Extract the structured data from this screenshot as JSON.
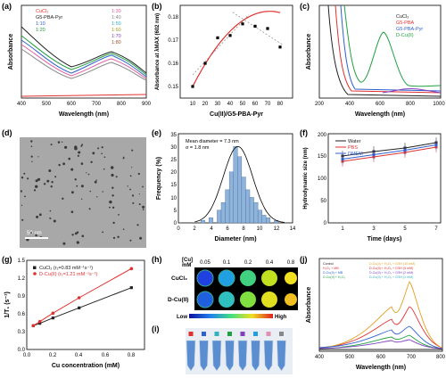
{
  "panels": {
    "a": {
      "label": "(a)",
      "xlabel": "Wavelength (nm)",
      "ylabel": "Absorbance",
      "xticks": [
        "400",
        "500",
        "600",
        "700",
        "800",
        "900"
      ],
      "legend_left": [
        "CuCl₂",
        "G5-PBA-Pyr",
        "1:10",
        "1:20"
      ],
      "legend_right": [
        "1:30",
        "1:40",
        "1:50",
        "1:60",
        "1:70",
        "1:80"
      ]
    },
    "b": {
      "label": "(b)",
      "xlabel": "Cu(II)/G5-PBA-Pyr",
      "ylabel": "Absorbance at λMAX (602 nm)",
      "xticks": [
        "10",
        "20",
        "30",
        "40",
        "50",
        "60",
        "70",
        "80"
      ],
      "yticks": [
        "0.15",
        "0.16",
        "0.17",
        "0.18"
      ]
    },
    "c": {
      "label": "(c)",
      "xlabel": "Wavelength (nm)",
      "ylabel": "Absorbance",
      "xticks": [
        "200",
        "400",
        "600",
        "800",
        "1000"
      ],
      "legend": [
        "CuCl₂",
        "G5-PBA",
        "G5-PBA-Pyr",
        "D-Cu(II)"
      ]
    },
    "d": {
      "label": "(d)",
      "scale": "50 nm"
    },
    "e": {
      "label": "(e)",
      "xlabel": "Diameter (nm)",
      "ylabel": "Frequency (%)",
      "annot1": "Mean diameter = 7.3 nm",
      "annot2": "σ = 1.8 nm",
      "xticks": [
        "0",
        "2",
        "4",
        "6",
        "8",
        "10",
        "12",
        "14"
      ],
      "yticks": [
        "0",
        "5",
        "10",
        "15",
        "20",
        "25",
        "30",
        "35"
      ]
    },
    "f": {
      "label": "(f)",
      "xlabel": "Time (days)",
      "ylabel": "Hydrodynamic size (nm)",
      "xticks": [
        "1",
        "3",
        "5",
        "7"
      ],
      "yticks": [
        "0",
        "50",
        "100",
        "150",
        "200"
      ],
      "legend": [
        "Water",
        "PBS",
        "DMEM"
      ]
    },
    "g": {
      "label": "(g)",
      "xlabel": "Cu concentration (mM)",
      "ylabel": "1/T₁ (s⁻¹)",
      "xticks": [
        "0.0",
        "0.2",
        "0.4",
        "0.6",
        "0.8"
      ],
      "yticks": [
        "0.0",
        "0.3",
        "0.6",
        "0.9",
        "1.2",
        "1.5"
      ],
      "legend": [
        "CuCl₂     (r₁=0.83 mM⁻¹s⁻¹)",
        "D-Cu(II) (r₁=1.21 mM⁻¹s⁻¹)"
      ]
    },
    "h": {
      "label": "(h)",
      "header": "[Cu]",
      "unit": "mM",
      "concs": [
        "0.05",
        "0.1",
        "0.2",
        "0.4",
        "0.8"
      ],
      "row1": "CuCl₂",
      "row2": "D-Cu(II)",
      "low": "Low",
      "high": "High"
    },
    "i": {
      "label": "(i)"
    },
    "j": {
      "label": "(j)",
      "xlabel": "Wavelength (nm)",
      "ylabel": "Absorbance",
      "xticks": [
        "400",
        "500",
        "600",
        "700",
        "800"
      ],
      "legend_left": [
        "Control",
        "H₂O₂ + MB",
        "D-Cu(II) + MB",
        "D-Cu(II) + H₂O₂"
      ],
      "legend_right": [
        "D-Cu(II) + H₂O₂ + GSH (10 mM)",
        "D-Cu(II) + H₂O₂ + GSH (5 mM)",
        "D-Cu(II) + H₂O₂ + GSH (2 mM)",
        "D-Cu(II) + H₂O₂ + GSH (1 mM)"
      ]
    }
  },
  "colors": {
    "black": "#222222",
    "red": "#e03030",
    "blue": "#3060d0",
    "green": "#20a040",
    "grey": "#888888",
    "pink": "#e060a0",
    "cyan": "#30b0c0",
    "olive": "#a0a020",
    "purple": "#8040c0",
    "brown": "#a05030",
    "bar": "#8fb4dc"
  },
  "chart_data": [
    {
      "type": "scatter",
      "panel": "b",
      "x": [
        10,
        20,
        30,
        40,
        50,
        60,
        70,
        80
      ],
      "y": [
        0.15,
        0.16,
        0.171,
        0.172,
        0.177,
        0.176,
        0.175,
        0.167
      ],
      "xlim": [
        0,
        90
      ],
      "ylim": [
        0.145,
        0.185
      ]
    },
    {
      "type": "bar",
      "panel": "e",
      "x": [
        3,
        4,
        5,
        5.5,
        6,
        6.5,
        7,
        7.5,
        8,
        8.5,
        9,
        9.5,
        10,
        10.5,
        11,
        12
      ],
      "values": [
        1,
        2,
        5,
        8,
        13,
        20,
        30,
        26,
        18,
        13,
        10,
        8,
        5,
        3,
        2,
        1
      ],
      "xlim": [
        0,
        14
      ],
      "ylim": [
        0,
        35
      ]
    },
    {
      "type": "line",
      "panel": "f",
      "x": [
        1,
        3,
        5,
        7
      ],
      "series": [
        {
          "name": "Water",
          "values": [
            150,
            160,
            168,
            180
          ]
        },
        {
          "name": "PBS",
          "values": [
            138,
            148,
            158,
            170
          ]
        },
        {
          "name": "DMEM",
          "values": [
            143,
            153,
            163,
            175
          ]
        }
      ],
      "ylim": [
        0,
        200
      ]
    },
    {
      "type": "scatter",
      "panel": "g",
      "x": [
        0.05,
        0.1,
        0.2,
        0.4,
        0.8
      ],
      "series": [
        {
          "name": "CuCl₂",
          "values": [
            0.4,
            0.44,
            0.53,
            0.7,
            1.04
          ]
        },
        {
          "name": "D-Cu(II)",
          "values": [
            0.4,
            0.47,
            0.61,
            0.87,
            1.36
          ]
        }
      ],
      "xlim": [
        0,
        0.9
      ],
      "ylim": [
        0,
        1.5
      ]
    }
  ],
  "i_tubes": [
    "#e03030",
    "#3060d0",
    "#30b0c0",
    "#20a040",
    "#8040c0",
    "#20a0e0",
    "#e090b0",
    "#888888"
  ]
}
